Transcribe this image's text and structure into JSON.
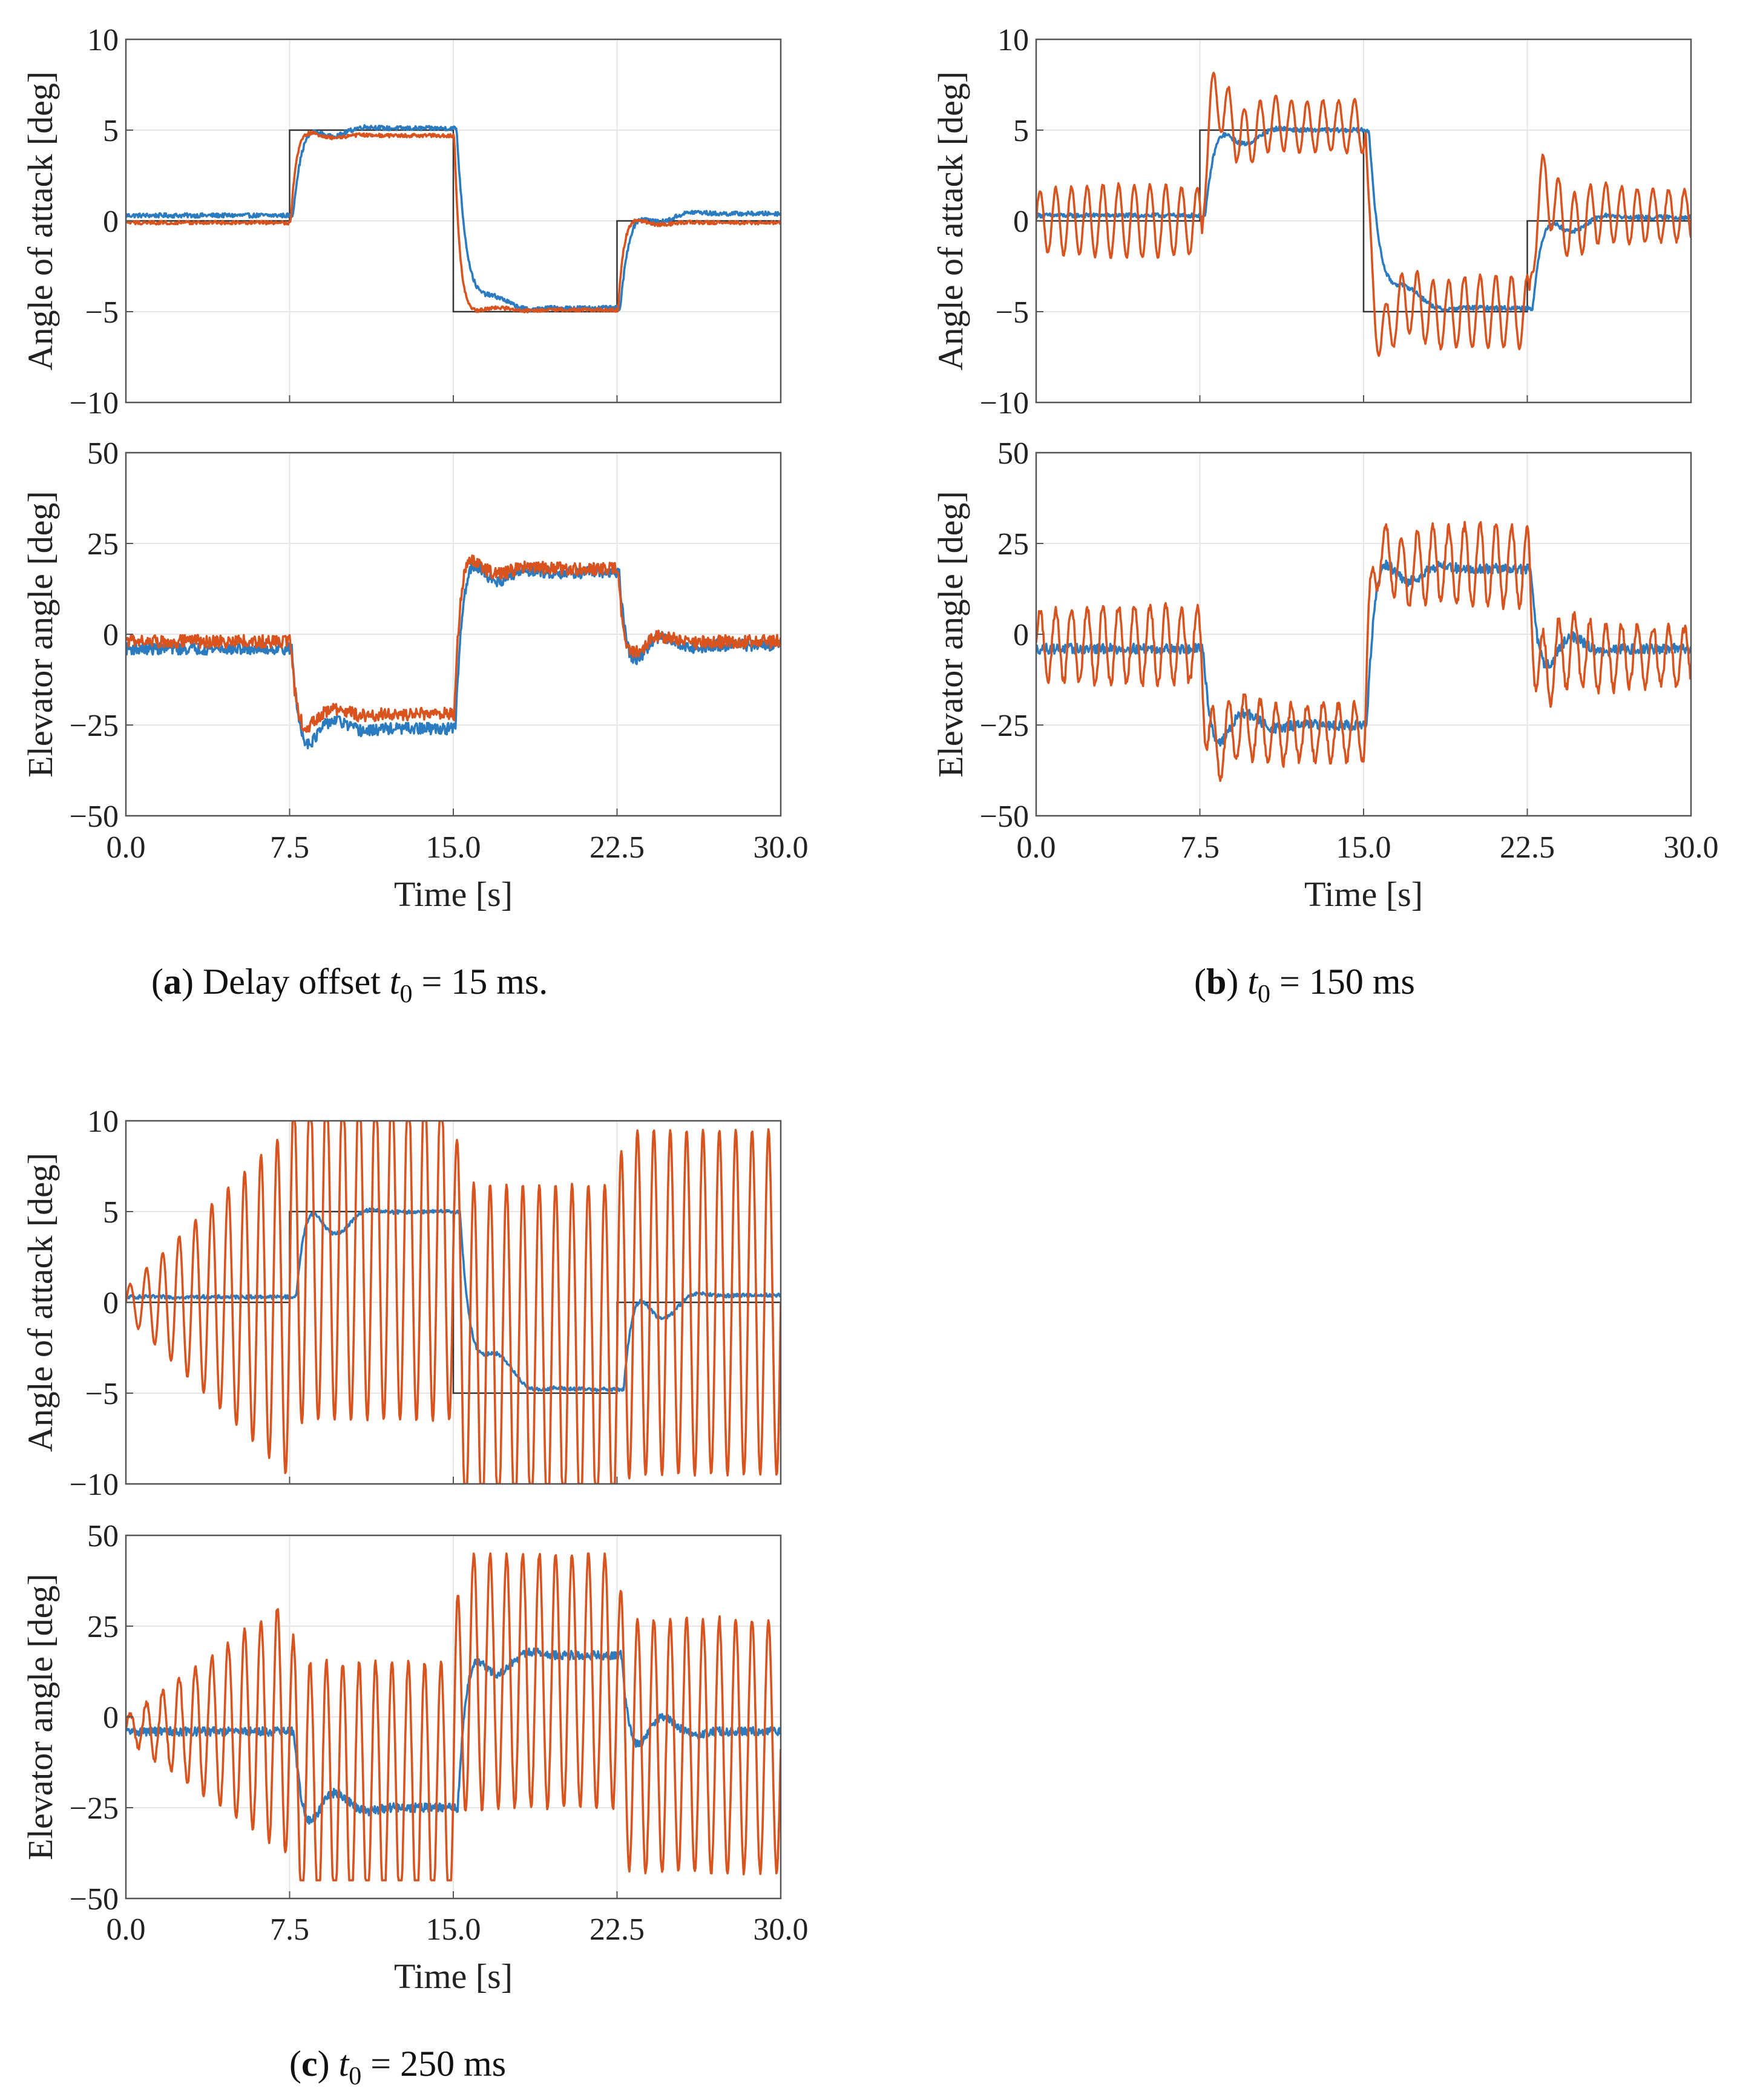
{
  "colors": {
    "reference": "#333333",
    "series_blue": "#2b7bc0",
    "series_orange": "#d9531e",
    "grid": "#e6e6e6",
    "axis": "#555555"
  },
  "chart_data": [
    {
      "id": "a",
      "type": "line",
      "caption": {
        "tag": "a",
        "text": " Delay offset ",
        "math_var": "t",
        "math_sub": "0",
        "math_rest": " = 15 ms."
      },
      "xlabel": "Time [s]",
      "xlim": [
        0,
        30
      ],
      "xticks": [
        0,
        7.5,
        15,
        22.5,
        30
      ],
      "xtick_labels": [
        "0.0",
        "7.5",
        "15.0",
        "22.5",
        "30.0"
      ],
      "grid": true,
      "panels": [
        {
          "ylabel": "Angle of attack [deg]",
          "ylim": [
            -10,
            10
          ],
          "yticks": [
            -10,
            -5,
            0,
            5,
            10
          ],
          "ytick_labels": [
            "−10",
            "−5",
            "0",
            "5",
            "10"
          ],
          "reference": {
            "x": [
              0,
              7.5,
              7.5,
              15,
              15,
              22.5,
              22.5,
              30
            ],
            "y": [
              0,
              0,
              5,
              5,
              -5,
              -5,
              0,
              0
            ]
          },
          "series": [
            {
              "color_key": "series_blue",
              "shape": {
                "kind": "step",
                "levels": [
                  0.3,
                  5.1,
                  -4.8,
                  0.4
                ],
                "amp": 0,
                "period": 1.2,
                "grow": 0,
                "noise": 0.12,
                "overshoot": 1.6,
                "tau": 0.55,
                "lag": 0.15,
                "clip": [
                  -10,
                  10
                ]
              }
            },
            {
              "color_key": "series_orange",
              "shape": {
                "kind": "step",
                "levels": [
                  -0.1,
                  4.7,
                  -4.9,
                  -0.1
                ],
                "amp": 0,
                "period": 1.2,
                "grow": 0,
                "noise": 0.1,
                "overshoot": 0.6,
                "tau": 0.25,
                "lag": 0.05,
                "clip": [
                  -10,
                  10
                ]
              }
            }
          ]
        },
        {
          "ylabel": "Elevator angle [deg]",
          "ylim": [
            -50,
            50
          ],
          "yticks": [
            -50,
            -25,
            0,
            25,
            50
          ],
          "ytick_labels": [
            "−50",
            "−25",
            "0",
            "25",
            "50"
          ],
          "series": [
            {
              "color_key": "series_blue",
              "shape": {
                "kind": "step",
                "levels": [
                  -4,
                  -26,
                  17,
                  -3
                ],
                "amp": 0,
                "period": 1.2,
                "grow": 0,
                "noise": 1.6,
                "overshoot": 12,
                "tau": 0.35,
                "lag": 0.1,
                "clip": [
                  -50,
                  50
                ]
              }
            },
            {
              "color_key": "series_orange",
              "shape": {
                "kind": "step",
                "levels": [
                  -2,
                  -22,
                  18,
                  -2
                ],
                "amp": 0,
                "period": 1.2,
                "grow": 0,
                "noise": 1.8,
                "overshoot": 8,
                "tau": 0.25,
                "lag": 0.05,
                "clip": [
                  -50,
                  50
                ]
              }
            }
          ]
        }
      ]
    },
    {
      "id": "b",
      "type": "line",
      "caption": {
        "tag": "b",
        "text": " ",
        "math_var": "t",
        "math_sub": "0",
        "math_rest": " = 150 ms"
      },
      "xlabel": "Time [s]",
      "xlim": [
        0,
        30
      ],
      "xticks": [
        0,
        7.5,
        15,
        22.5,
        30
      ],
      "xtick_labels": [
        "0.0",
        "7.5",
        "15.0",
        "22.5",
        "30.0"
      ],
      "grid": true,
      "panels": [
        {
          "ylabel": "Angle of attack [deg]",
          "ylim": [
            -10,
            10
          ],
          "yticks": [
            -10,
            -5,
            0,
            5,
            10
          ],
          "ytick_labels": [
            "−10",
            "−5",
            "0",
            "5",
            "10"
          ],
          "reference": {
            "x": [
              0,
              7.5,
              7.5,
              15,
              15,
              22.5,
              22.5,
              30
            ],
            "y": [
              0,
              0,
              5,
              5,
              -5,
              -5,
              0,
              0
            ]
          },
          "series": [
            {
              "color_key": "series_blue",
              "shape": {
                "kind": "step",
                "levels": [
                  0.3,
                  5.0,
                  -4.8,
                  0.2
                ],
                "amp": 0,
                "period": 1.6,
                "grow": 0,
                "noise": 0.12,
                "overshoot": 2.4,
                "tau": 0.7,
                "lag": 0.25,
                "clip": [
                  -10,
                  10
                ]
              }
            },
            {
              "color_key": "series_orange",
              "shape": {
                "kind": "step",
                "levels": [
                  0.0,
                  5.2,
                  -5.0,
                  0.3
                ],
                "amp": 2.0,
                "period": 0.72,
                "grow": 0,
                "noise": 0.1,
                "overshoot": 3.2,
                "tau": 0.25,
                "lag": 0.1,
                "clip": [
                  -10,
                  10
                ]
              }
            }
          ]
        },
        {
          "ylabel": "Elevator angle [deg]",
          "ylim": [
            -50,
            50
          ],
          "yticks": [
            -50,
            -25,
            0,
            25,
            50
          ],
          "ytick_labels": [
            "−50",
            "−25",
            "0",
            "25",
            "50"
          ],
          "series": [
            {
              "color_key": "series_blue",
              "shape": {
                "kind": "step",
                "levels": [
                  -4,
                  -25,
                  18,
                  -4
                ],
                "amp": 0,
                "period": 1.6,
                "grow": 0,
                "noise": 1.4,
                "overshoot": 16,
                "tau": 0.45,
                "lag": 0.15,
                "clip": [
                  -50,
                  50
                ]
              }
            },
            {
              "color_key": "series_orange",
              "shape": {
                "kind": "step",
                "levels": [
                  -3,
                  -27,
                  19,
                  -6
                ],
                "amp": 11,
                "period": 0.72,
                "grow": 0,
                "noise": 1.3,
                "overshoot": 10,
                "tau": 0.25,
                "lag": 0.05,
                "clip": [
                  -50,
                  50
                ]
              }
            }
          ]
        }
      ]
    },
    {
      "id": "c",
      "type": "line",
      "caption": {
        "tag": "c",
        "text": " ",
        "math_var": "t",
        "math_sub": "0",
        "math_rest": " = 250 ms"
      },
      "xlabel": "Time [s]",
      "xlim": [
        0,
        30
      ],
      "xticks": [
        0,
        7.5,
        15,
        22.5,
        30
      ],
      "xtick_labels": [
        "0.0",
        "7.5",
        "15.0",
        "22.5",
        "30.0"
      ],
      "grid": true,
      "panels": [
        {
          "ylabel": "Angle of attack [deg]",
          "ylim": [
            -10,
            10
          ],
          "yticks": [
            -10,
            -5,
            0,
            5,
            10
          ],
          "ytick_labels": [
            "−10",
            "−5",
            "0",
            "5",
            "10"
          ],
          "reference": {
            "x": [
              0,
              7.5,
              7.5,
              15,
              15,
              22.5,
              22.5,
              30
            ],
            "y": [
              0,
              0,
              5,
              5,
              -5,
              -5,
              0,
              0
            ]
          },
          "series": [
            {
              "color_key": "series_blue",
              "shape": {
                "kind": "step",
                "levels": [
                  0.3,
                  5.0,
                  -4.8,
                  0.4
                ],
                "amp": 0,
                "period": 2.0,
                "grow": 0,
                "noise": 0.1,
                "overshoot": 3.6,
                "tau": 0.9,
                "lag": 0.3,
                "clip": [
                  -10,
                  10
                ]
              }
            },
            {
              "color_key": "series_orange",
              "shape": {
                "kind": "step",
                "levels": [
                  0.0,
                  3.0,
                  -3.0,
                  0.0
                ],
                "amp": 9.5,
                "period": 0.75,
                "grow": 1.0,
                "noise": 0.05,
                "overshoot": 0,
                "tau": 0.2,
                "lag": 0.0,
                "clip": [
                  -10,
                  10
                ]
              }
            }
          ]
        },
        {
          "ylabel": "Elevator angle [deg]",
          "ylim": [
            -50,
            50
          ],
          "yticks": [
            -50,
            -25,
            0,
            25,
            50
          ],
          "ytick_labels": [
            "−50",
            "−25",
            "0",
            "25",
            "50"
          ],
          "series": [
            {
              "color_key": "series_blue",
              "shape": {
                "kind": "step",
                "levels": [
                  -4,
                  -25,
                  17,
                  -4
                ],
                "amp": 0,
                "period": 2.0,
                "grow": 0,
                "noise": 1.2,
                "overshoot": 18,
                "tau": 0.6,
                "lag": 0.2,
                "clip": [
                  -50,
                  50
                ]
              }
            },
            {
              "color_key": "series_orange",
              "shape": {
                "kind": "step",
                "levels": [
                  -3,
                  -20,
                  10,
                  -8
                ],
                "amp": 35,
                "period": 0.75,
                "grow": 1.0,
                "noise": 1.0,
                "overshoot": 0,
                "tau": 0.2,
                "lag": 0.0,
                "clip": [
                  -45,
                  45
                ]
              }
            }
          ]
        }
      ]
    }
  ]
}
